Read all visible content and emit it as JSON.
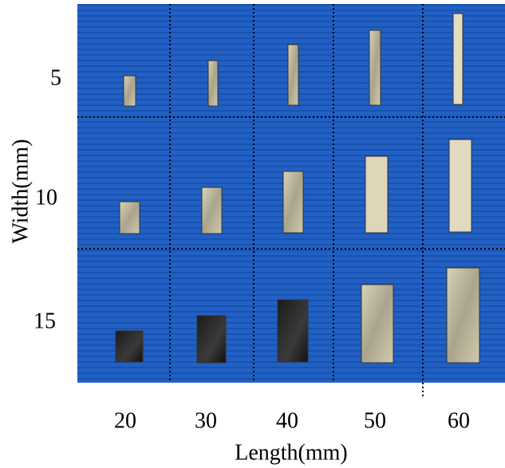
{
  "x_label": "Length(mm)",
  "y_label": "Width(mm)",
  "length_labels": [
    "20",
    "30",
    "40",
    "50",
    "60"
  ],
  "width_labels": [
    "5",
    "10",
    "15"
  ]
}
